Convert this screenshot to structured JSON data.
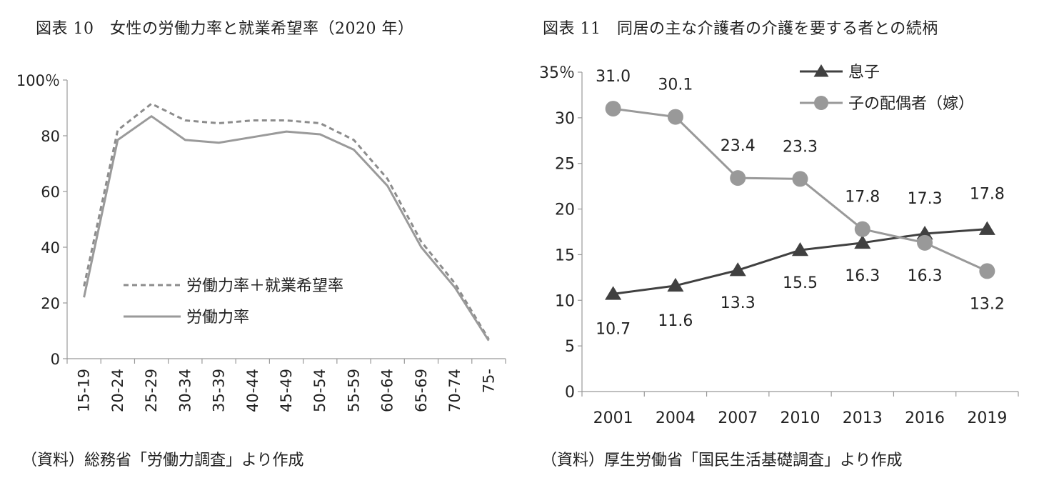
{
  "chart_data": [
    {
      "type": "line",
      "title": "図表 10　女性の労働力率と就業希望率（2020 年）",
      "source": "（資料）総務省「労働力調査」より作成",
      "categories": [
        "15-19",
        "20-24",
        "25-29",
        "30-34",
        "35-39",
        "40-44",
        "45-49",
        "50-54",
        "55-59",
        "60-64",
        "65-69",
        "70-74",
        "75-"
      ],
      "ylim": [
        0,
        100
      ],
      "yticks": [
        0,
        20,
        40,
        60,
        80,
        100
      ],
      "ytick_labels": [
        "0",
        "20",
        "40",
        "60",
        "80",
        "100％"
      ],
      "legend_position": "center-left",
      "grid": false,
      "series": [
        {
          "name": "労働力率＋就業希望率",
          "style": "dashed",
          "color": "#8c8c8c",
          "values": [
            26.0,
            82.0,
            91.5,
            85.5,
            84.5,
            85.5,
            85.5,
            84.5,
            78.5,
            64.5,
            42.0,
            27.0,
            7.0
          ]
        },
        {
          "name": "労働力率",
          "style": "solid",
          "color": "#9a9a9a",
          "values": [
            22.0,
            78.5,
            87.0,
            78.5,
            77.5,
            79.5,
            81.5,
            80.5,
            75.0,
            62.0,
            40.0,
            25.5,
            6.5
          ]
        }
      ]
    },
    {
      "type": "line",
      "title": "図表 11　同居の主な介護者の介護を要する者との続柄",
      "source": "（資料）厚生労働省「国民生活基礎調査」より作成",
      "categories": [
        "2001",
        "2004",
        "2007",
        "2010",
        "2013",
        "2016",
        "2019"
      ],
      "ylim": [
        0,
        35
      ],
      "yticks": [
        0,
        5,
        10,
        15,
        20,
        25,
        30,
        35
      ],
      "ytick_labels": [
        "0",
        "5",
        "10",
        "15",
        "20",
        "25",
        "30",
        "35％"
      ],
      "legend_position": "top-right",
      "grid": false,
      "series": [
        {
          "name": "息子",
          "marker": "triangle",
          "color": "#404040",
          "values": [
            10.7,
            11.6,
            13.3,
            15.5,
            16.3,
            17.3,
            17.8
          ],
          "labels": [
            "10.7",
            "11.6",
            "13.3",
            "15.5",
            "16.3",
            "17.3",
            "17.8"
          ]
        },
        {
          "name": "子の配偶者（嫁）",
          "marker": "circle",
          "color": "#999999",
          "values": [
            31.0,
            30.1,
            23.4,
            23.3,
            17.8,
            16.3,
            13.2
          ],
          "labels": [
            "31.0",
            "30.1",
            "23.4",
            "23.3",
            "17.8",
            "16.3",
            "13.2"
          ]
        }
      ]
    }
  ]
}
